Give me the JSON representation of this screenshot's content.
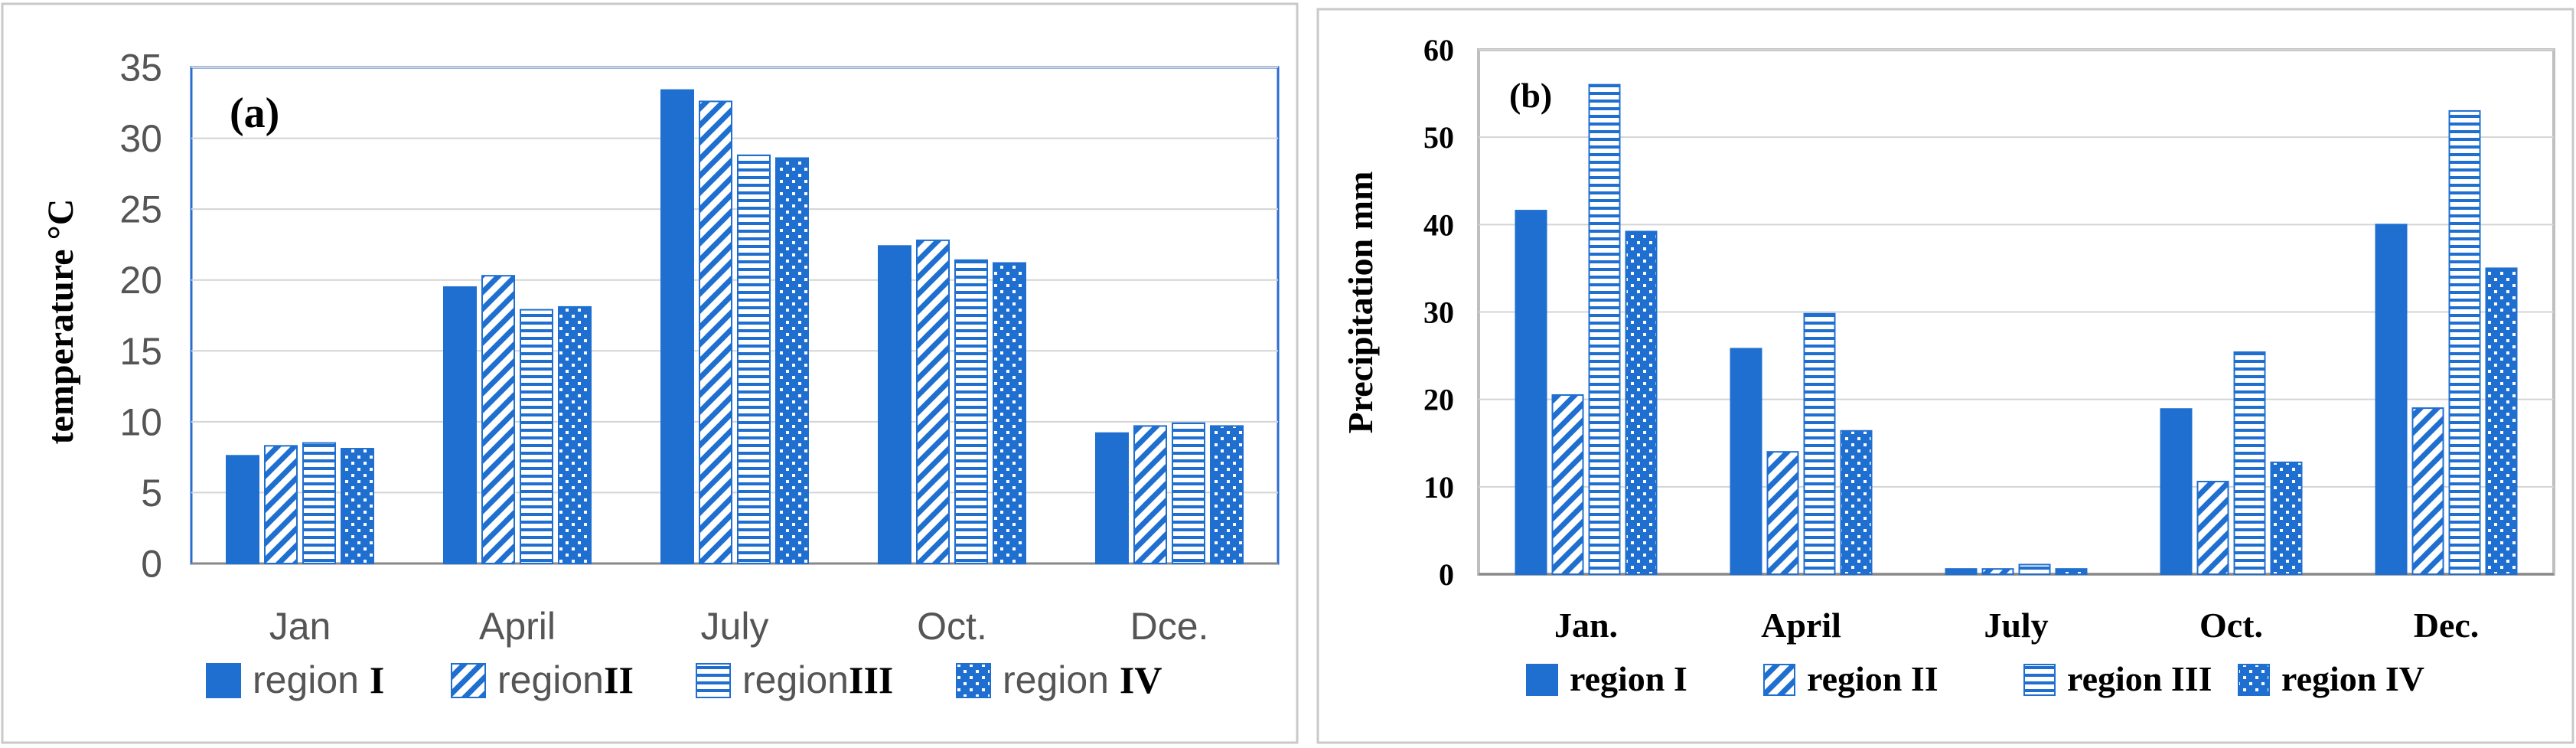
{
  "colors": {
    "series": "#1f6fd0",
    "axis": "#888888",
    "frame": "#c9c9c9",
    "grid": "#d4d4d4"
  },
  "chart_data": [
    {
      "panel": "(a)",
      "type": "bar",
      "ylabel": "temperature  °C",
      "ylim": [
        0,
        35
      ],
      "yticks": [
        0,
        5,
        10,
        15,
        20,
        25,
        30,
        35
      ],
      "categories": [
        "Jan",
        "April",
        "July",
        "Oct.",
        "Dce."
      ],
      "legend_position": "bottom",
      "series": [
        {
          "prefix": "region",
          "suffix": "I",
          "pattern": "solid",
          "values": [
            7.6,
            19.5,
            33.4,
            22.4,
            9.2
          ]
        },
        {
          "prefix": "region",
          "suffix": "II",
          "pattern": "diagonal",
          "values": [
            8.3,
            20.3,
            32.6,
            22.8,
            9.7
          ]
        },
        {
          "prefix": "region",
          "suffix": "III",
          "pattern": "horizontal",
          "values": [
            8.5,
            17.9,
            28.8,
            21.4,
            9.9
          ]
        },
        {
          "prefix": "region",
          "suffix": "IV",
          "pattern": "checker",
          "values": [
            8.1,
            18.1,
            28.6,
            21.2,
            9.7
          ]
        }
      ]
    },
    {
      "panel": "(b)",
      "type": "bar",
      "ylabel": "Precipitation    mm",
      "ylim": [
        0,
        60
      ],
      "yticks": [
        0,
        10,
        20,
        30,
        40,
        50,
        60
      ],
      "categories": [
        "Jan.",
        "April",
        "July",
        "Oct.",
        "Dec."
      ],
      "legend_position": "bottom",
      "series": [
        {
          "prefix": "region",
          "suffix": "I",
          "pattern": "solid",
          "values": [
            41.6,
            25.8,
            0.6,
            18.9,
            40.0
          ]
        },
        {
          "prefix": "region",
          "suffix": "II",
          "pattern": "diagonal",
          "values": [
            20.5,
            14.0,
            0.6,
            10.6,
            19.0
          ]
        },
        {
          "prefix": "region",
          "suffix": "III",
          "pattern": "horizontal",
          "values": [
            56.0,
            29.8,
            1.1,
            25.4,
            53.0
          ]
        },
        {
          "prefix": "region",
          "suffix": "IV",
          "pattern": "checker",
          "values": [
            39.2,
            16.4,
            0.6,
            12.8,
            35.0
          ]
        }
      ]
    }
  ]
}
